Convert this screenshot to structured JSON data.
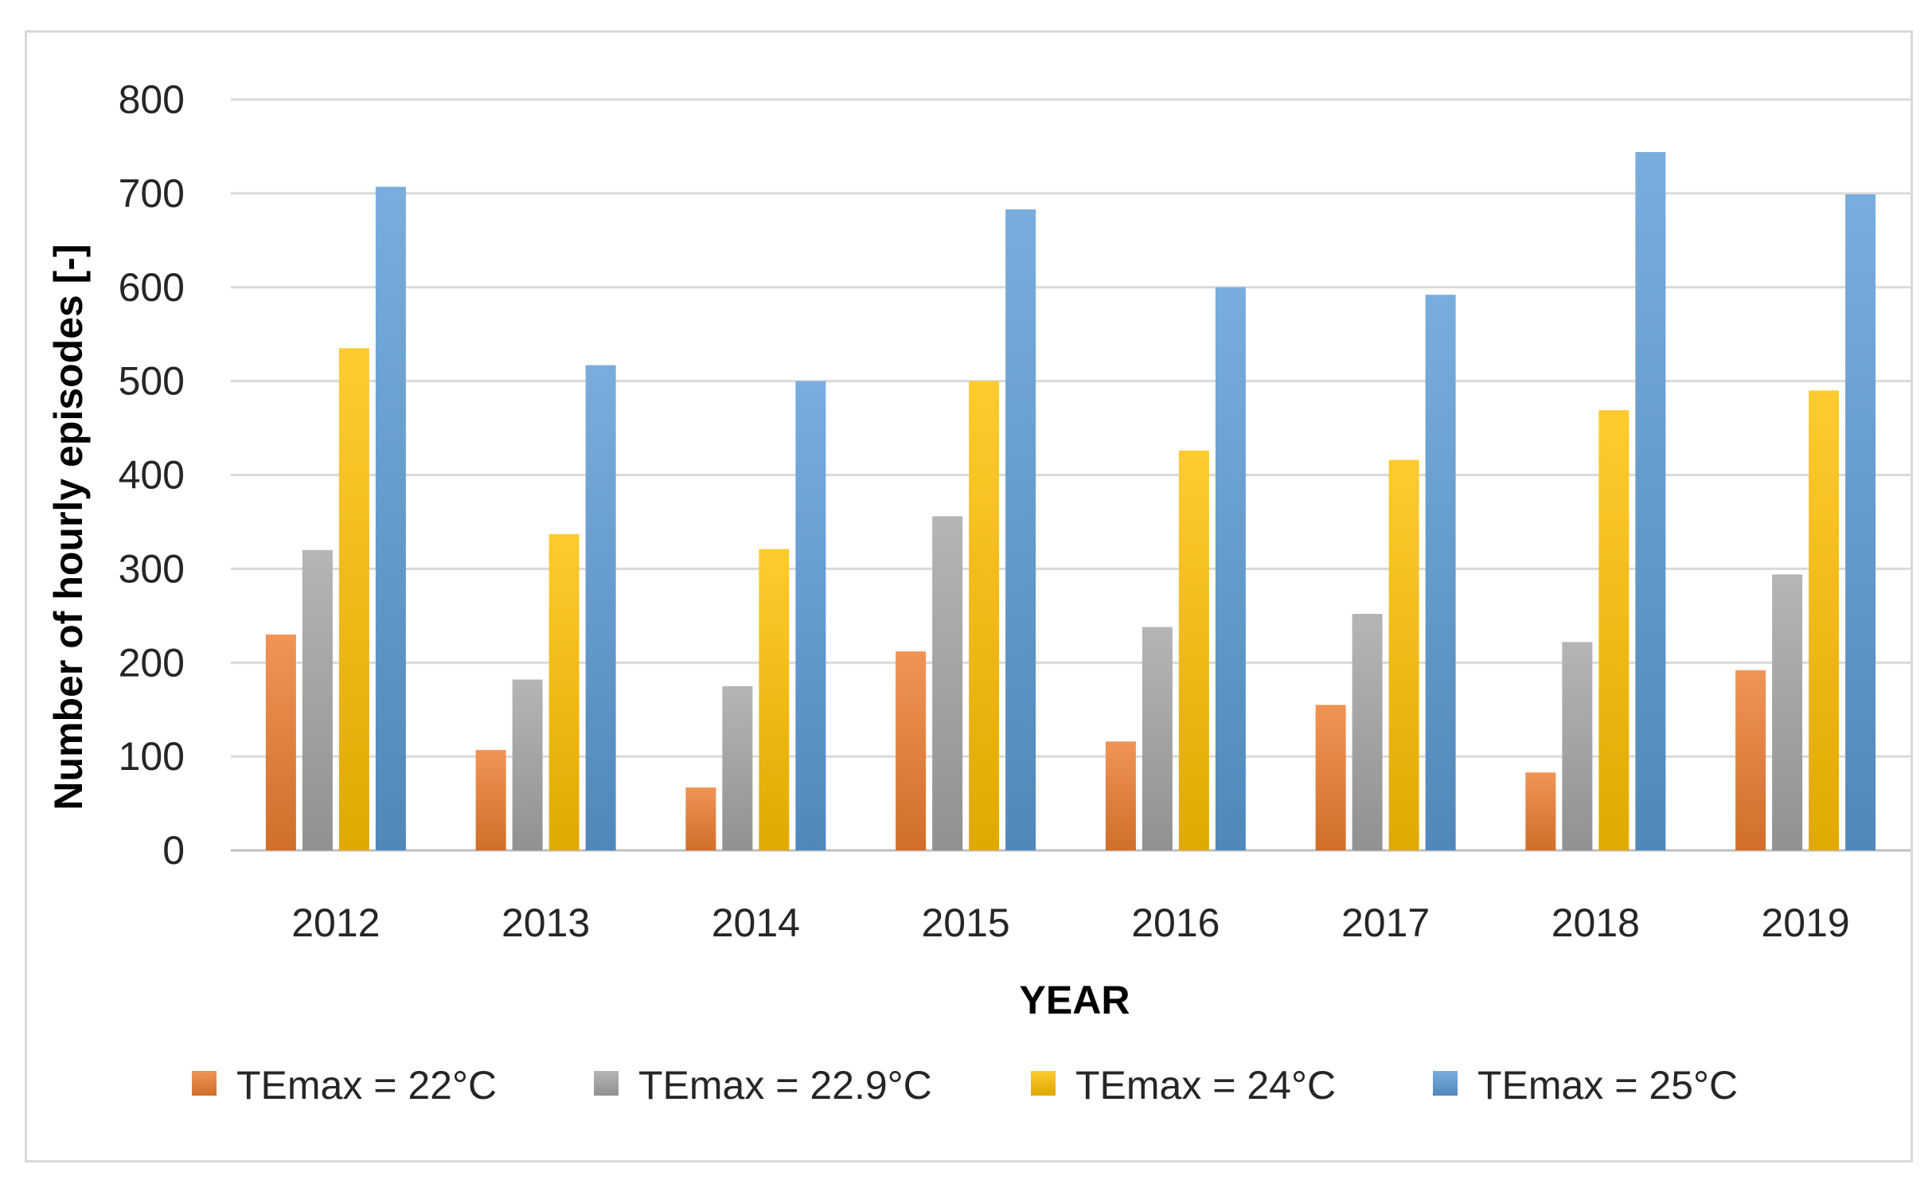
{
  "chart_data": {
    "type": "bar",
    "title": "",
    "xlabel": "YEAR",
    "ylabel": "Number of hourly episodes [-]",
    "ylim": [
      0,
      800
    ],
    "yticks": [
      0,
      100,
      200,
      300,
      400,
      500,
      600,
      700,
      800
    ],
    "grid": true,
    "legend_position": "bottom",
    "categories": [
      "2012",
      "2013",
      "2014",
      "2015",
      "2016",
      "2017",
      "2018",
      "2019"
    ],
    "series": [
      {
        "name": "TEmax = 22°C",
        "color": "#ed7d31",
        "values": [
          230,
          107,
          67,
          212,
          116,
          155,
          83,
          192
        ]
      },
      {
        "name": "TEmax = 22.9°C",
        "color": "#a5a5a5",
        "values": [
          320,
          182,
          175,
          356,
          238,
          252,
          222,
          294
        ]
      },
      {
        "name": "TEmax = 24°C",
        "color": "#ffc000",
        "values": [
          535,
          337,
          321,
          500,
          426,
          416,
          469,
          490
        ]
      },
      {
        "name": "TEmax = 25°C",
        "color": "#5b9bd5",
        "values": [
          707,
          517,
          500,
          683,
          600,
          592,
          744,
          699
        ]
      }
    ]
  }
}
